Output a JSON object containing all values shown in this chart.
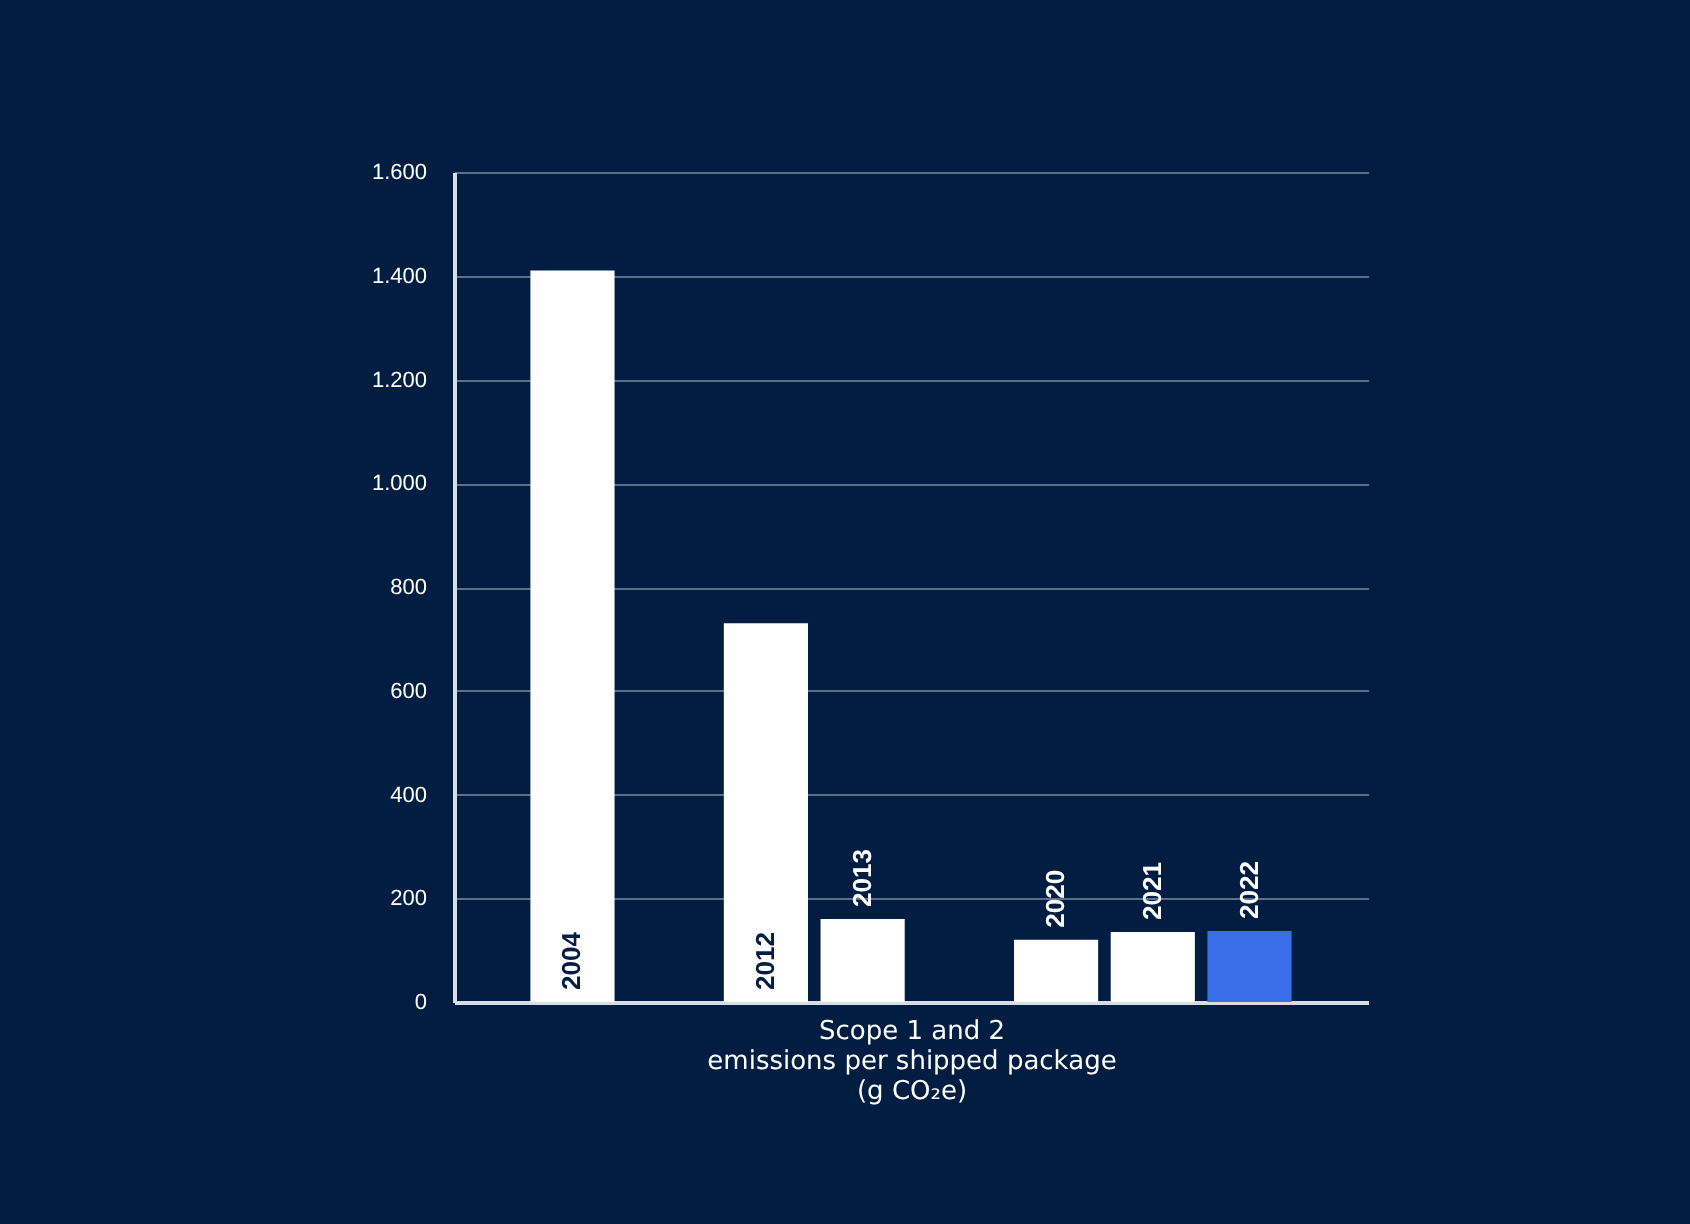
{
  "chart_data": {
    "type": "bar",
    "xlabel": "Scope 1 and 2\nemissions per shipped package\n(g CO₂e)",
    "categories": [
      "2004",
      null,
      "2012",
      "2013",
      null,
      "2020",
      "2021",
      "2022"
    ],
    "values": [
      1410,
      null,
      730,
      160,
      null,
      120,
      135,
      137
    ],
    "colors": [
      "#ffffff",
      null,
      "#ffffff",
      "#ffffff",
      null,
      "#ffffff",
      "#ffffff",
      "#3a6ee8"
    ],
    "ylim": [
      0,
      1600
    ],
    "yticks": [
      0,
      200,
      400,
      600,
      800,
      {
        "value": 1000,
        "label": "1.000"
      },
      {
        "value": 1200,
        "label": "1.200"
      },
      {
        "value": 1400,
        "label": "1.400"
      },
      {
        "value": 1600,
        "label": "1.600"
      }
    ],
    "grid": "y"
  }
}
